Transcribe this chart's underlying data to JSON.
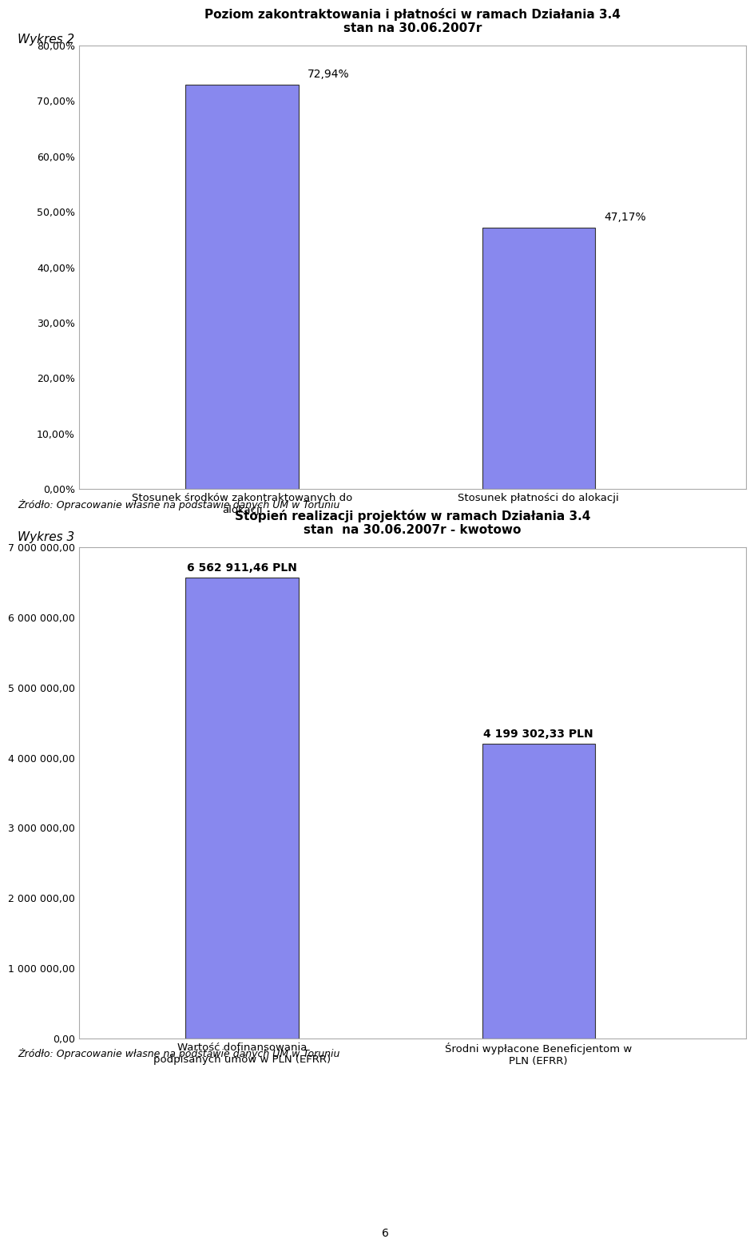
{
  "chart1": {
    "title_line1": "Poziom zakontraktowania i płatności w ramach Działania 3.4",
    "title_line2": "stan na 30.06.2007r",
    "categories": [
      "Stosunek środków zakontraktowanych do\nalokacji",
      "Stosunek płatności do alokacji"
    ],
    "values": [
      72.94,
      47.17
    ],
    "labels": [
      "72,94%",
      "47,17%"
    ],
    "bar_color": "#8888ee",
    "bar_edge_color": "#333333",
    "ylim": [
      0,
      80
    ],
    "yticks": [
      0,
      10,
      20,
      30,
      40,
      50,
      60,
      70,
      80
    ],
    "ytick_labels": [
      "0,00%",
      "10,00%",
      "20,00%",
      "30,00%",
      "40,00%",
      "50,00%",
      "60,00%",
      "70,00%",
      "80,00%"
    ]
  },
  "chart2": {
    "title_line1": "Stopień realizacji projektów w ramach Działania 3.4",
    "title_line2": "stan  na 30.06.2007r - kwotowo",
    "categories": [
      "Wartość dofinansowania\npodpisanych umów w PLN (EFRR)",
      "Środni wypłacone Beneficjentom w\nPLN (EFRR)"
    ],
    "values": [
      6562911.46,
      4199302.33
    ],
    "labels": [
      "6 562 911,46 PLN",
      "4 199 302,33 PLN"
    ],
    "bar_color": "#8888ee",
    "bar_edge_color": "#333333",
    "ylim": [
      0,
      7000000
    ],
    "yticks": [
      0,
      1000000,
      2000000,
      3000000,
      4000000,
      5000000,
      6000000,
      7000000
    ],
    "ytick_labels": [
      "0,00",
      "1 000 000,00",
      "2 000 000,00",
      "3 000 000,00",
      "4 000 000,00",
      "5 000 000,00",
      "6 000 000,00",
      "7 000 000,00"
    ]
  },
  "wykres2_label": "Wykres 2",
  "wykres3_label": "Wykres 3",
  "source_text": "Żródło: Opracowanie własne na podstawie danych UM w Toruniu",
  "page_number": "6",
  "background_color": "#ffffff",
  "chart_bg_color": "#ffffff"
}
